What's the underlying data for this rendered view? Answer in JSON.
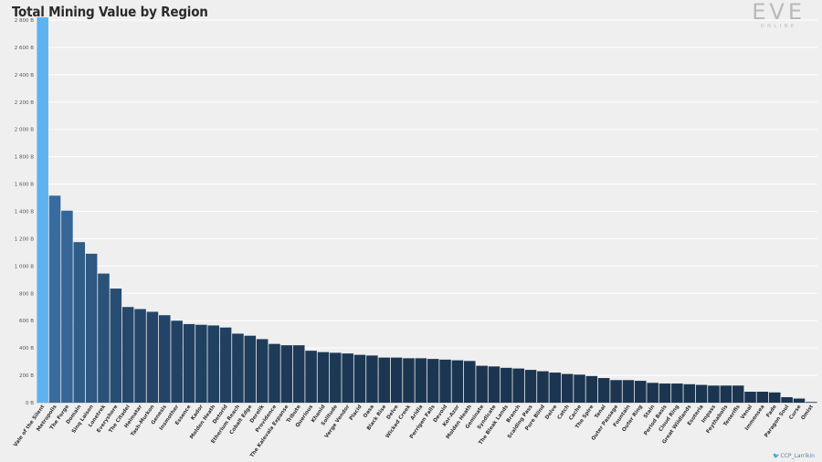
{
  "header": {
    "title": "Total Mining Value by Region"
  },
  "logo": {
    "main": "EVE",
    "sub": "ONLINE"
  },
  "credit": {
    "icon": "twitter-bird-icon",
    "text": "CCP_Larrikin"
  },
  "colors": {
    "highlight": "#5fb2f0",
    "dark": "#1b3550",
    "mid": "#2d5b86",
    "grid": "#ffffff",
    "background": "#efefef"
  },
  "chart_data": {
    "type": "bar",
    "title": "Total Mining Value by Region",
    "xlabel": "",
    "ylabel": "",
    "ylim": [
      0,
      2800
    ],
    "yticks": [
      0,
      200,
      400,
      600,
      800,
      1000,
      1200,
      1400,
      1600,
      1800,
      2000,
      2200,
      2400,
      2600,
      2800
    ],
    "ytick_labels": [
      "0 B",
      "200 B",
      "400 B",
      "600 B",
      "800 B",
      "1 000 B",
      "1 200 B",
      "1 400 B",
      "1 600 B",
      "1 800 B",
      "2 000 B",
      "2 200 B",
      "2 400 B",
      "2 600 B",
      "2 800 B"
    ],
    "grid": true,
    "categories": [
      "Vale of the Silent",
      "Metropolis",
      "The Forge",
      "Domain",
      "Sinq Laison",
      "Lonetrek",
      "Everyshore",
      "The Citadel",
      "Heimatar",
      "Tash-Murkon",
      "Genesis",
      "Insmother",
      "Essence",
      "Kador",
      "Molden Heath",
      "Detorid",
      "Etherium Reach",
      "Cobalt Edge",
      "Derelik",
      "Providence",
      "The Kalevala Expanse",
      "Tribute",
      "Querious",
      "Khanid",
      "Solitude",
      "Verge Vendor",
      "Placid",
      "Oasa",
      "Black Rise",
      "Delve",
      "Wicked Creek",
      "Aridia",
      "Perrigen Falls",
      "Devoid",
      "Kor-Azor",
      "Molden Heath",
      "Geminate",
      "Syndicate",
      "The Bleak Lands",
      "Branch",
      "Scalding Pass",
      "Pure Blind",
      "Delve",
      "Catch",
      "Cache",
      "The Spire",
      "Tenal",
      "Outer Passage",
      "Fountain",
      "Outer Ring",
      "Stain",
      "Period Basis",
      "Cloud Ring",
      "Great Wildlands",
      "Esoteria",
      "Impass",
      "Feythabolis",
      "Tenerifis",
      "Venal",
      "Immensea",
      "Fade",
      "Paragon Soul",
      "Curse",
      "Omist"
    ],
    "values": [
      2820,
      1515,
      1405,
      1175,
      1090,
      945,
      835,
      700,
      685,
      665,
      640,
      600,
      575,
      570,
      565,
      550,
      505,
      490,
      465,
      430,
      420,
      420,
      380,
      370,
      365,
      360,
      350,
      345,
      330,
      330,
      325,
      325,
      320,
      315,
      310,
      305,
      270,
      265,
      255,
      250,
      240,
      230,
      220,
      210,
      205,
      195,
      180,
      165,
      165,
      160,
      145,
      140,
      140,
      135,
      130,
      125,
      125,
      125,
      80,
      80,
      75,
      40,
      30,
      5
    ]
  }
}
